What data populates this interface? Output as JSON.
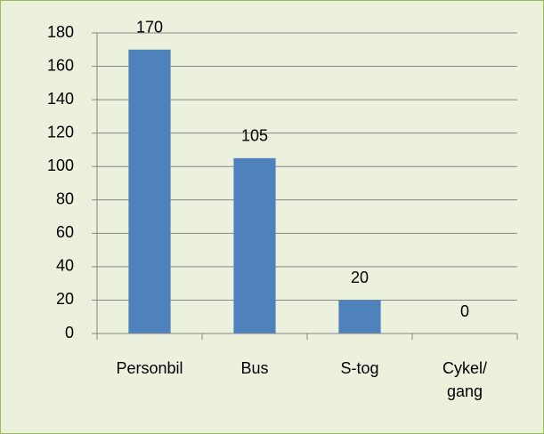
{
  "chart_data": {
    "type": "bar",
    "categories": [
      "Personbil",
      "Bus",
      "S-tog",
      "Cykel/\ngang"
    ],
    "values": [
      170,
      105,
      20,
      0
    ],
    "color": "#4f81bd",
    "ylim": [
      0,
      180
    ],
    "yticks": [
      0,
      20,
      40,
      60,
      80,
      100,
      120,
      140,
      160,
      180
    ],
    "grid": true
  }
}
